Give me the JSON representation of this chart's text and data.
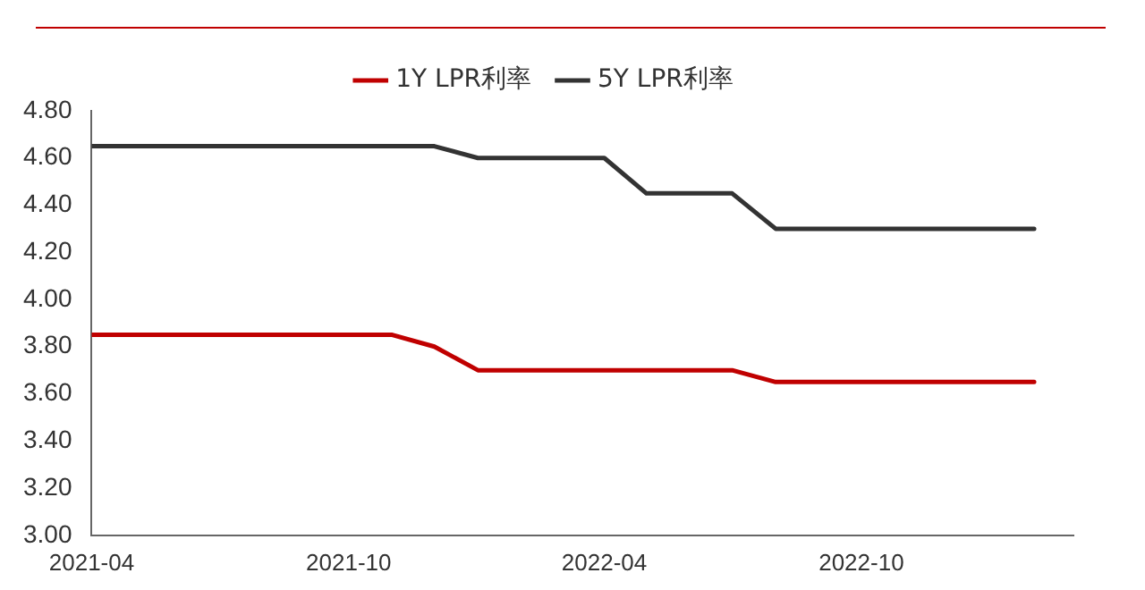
{
  "chart_data": {
    "type": "line",
    "x": [
      "2021-04",
      "2021-05",
      "2021-06",
      "2021-07",
      "2021-08",
      "2021-09",
      "2021-10",
      "2021-11",
      "2021-12",
      "2022-01",
      "2022-02",
      "2022-03",
      "2022-04",
      "2022-05",
      "2022-06",
      "2022-07",
      "2022-08",
      "2022-09",
      "2022-10",
      "2022-11",
      "2022-12",
      "2023-01",
      "2023-02"
    ],
    "series": [
      {
        "name": "1Y LPR利率",
        "color": "#c00000",
        "values": [
          3.85,
          3.85,
          3.85,
          3.85,
          3.85,
          3.85,
          3.85,
          3.85,
          3.8,
          3.7,
          3.7,
          3.7,
          3.7,
          3.7,
          3.7,
          3.7,
          3.65,
          3.65,
          3.65,
          3.65,
          3.65,
          3.65,
          3.65
        ]
      },
      {
        "name": "5Y LPR利率",
        "color": "#333333",
        "values": [
          4.65,
          4.65,
          4.65,
          4.65,
          4.65,
          4.65,
          4.65,
          4.65,
          4.65,
          4.6,
          4.6,
          4.6,
          4.6,
          4.45,
          4.45,
          4.45,
          4.3,
          4.3,
          4.3,
          4.3,
          4.3,
          4.3,
          4.3
        ]
      }
    ],
    "xlim": [
      "2021-04",
      "2023-03"
    ],
    "xticks": [
      "2021-04",
      "2021-10",
      "2022-04",
      "2022-10"
    ],
    "ylim": [
      3,
      4.8
    ],
    "yticks": [
      {
        "value": 3,
        "label": "3.00"
      },
      {
        "value": 3.2,
        "label": "3.20"
      },
      {
        "value": 3.4,
        "label": "3.40"
      },
      {
        "value": 3.6,
        "label": "3.60"
      },
      {
        "value": 3.8,
        "label": "3.80"
      },
      {
        "value": 4,
        "label": "4.00"
      },
      {
        "value": 4.2,
        "label": "4.20"
      },
      {
        "value": 4.4,
        "label": "4.40"
      },
      {
        "value": 4.6,
        "label": "4.60"
      },
      {
        "value": 4.8,
        "label": "4.80"
      }
    ],
    "grid": false,
    "legend": "top",
    "marker": "none",
    "line_style": "solid"
  }
}
